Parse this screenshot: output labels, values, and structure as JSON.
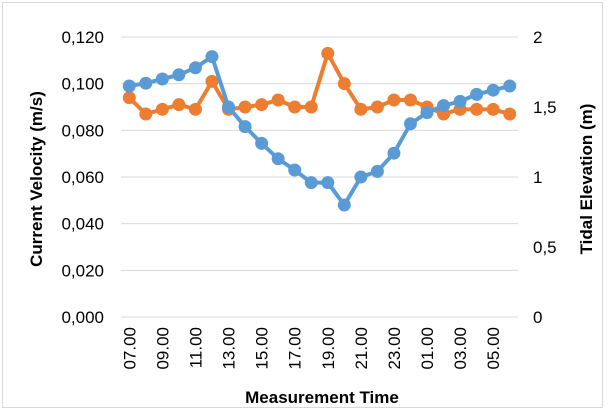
{
  "chart_data": {
    "type": "line",
    "xlabel": "Measurement Time",
    "ylabel": "Current Velocity (m/s)",
    "y2label": "Tidal Elevation (m)",
    "ylim": [
      0,
      0.12
    ],
    "y2lim": [
      0,
      2
    ],
    "y_ticks": [
      "0,000",
      "0,020",
      "0,040",
      "0,060",
      "0,080",
      "0,100",
      "0,120"
    ],
    "y2_ticks": [
      "0",
      "0,5",
      "1",
      "1,5",
      "2"
    ],
    "x_tick_labels": [
      "07.00",
      "09.00",
      "11.00",
      "13.00",
      "15.00",
      "17.00",
      "19.00",
      "21.00",
      "23.00",
      "01.00",
      "03.00",
      "05.00"
    ],
    "grid": true,
    "categories": [
      "07.00",
      "08.00",
      "09.00",
      "10.00",
      "11.00",
      "12.00",
      "13.00",
      "14.00",
      "15.00",
      "16.00",
      "17.00",
      "18.00",
      "19.00",
      "20.00",
      "21.00",
      "22.00",
      "23.00",
      "00.00",
      "01.00",
      "02.00",
      "03.00",
      "04.00",
      "05.00",
      "06.00"
    ],
    "series": [
      {
        "axis": "left",
        "color": "#ed7d31",
        "values": [
          0.094,
          0.087,
          0.089,
          0.091,
          0.089,
          0.101,
          0.089,
          0.09,
          0.091,
          0.093,
          0.09,
          0.09,
          0.113,
          0.1,
          0.089,
          0.09,
          0.093,
          0.093,
          0.09,
          0.087,
          0.089,
          0.089,
          0.089,
          0.087
        ]
      },
      {
        "axis": "right",
        "color": "#5b9bd5",
        "values": [
          1.65,
          1.67,
          1.7,
          1.73,
          1.78,
          1.86,
          1.5,
          1.36,
          1.24,
          1.13,
          1.05,
          0.96,
          0.96,
          0.8,
          1.0,
          1.04,
          1.17,
          1.38,
          1.46,
          1.51,
          1.54,
          1.59,
          1.62,
          1.65
        ]
      }
    ]
  }
}
